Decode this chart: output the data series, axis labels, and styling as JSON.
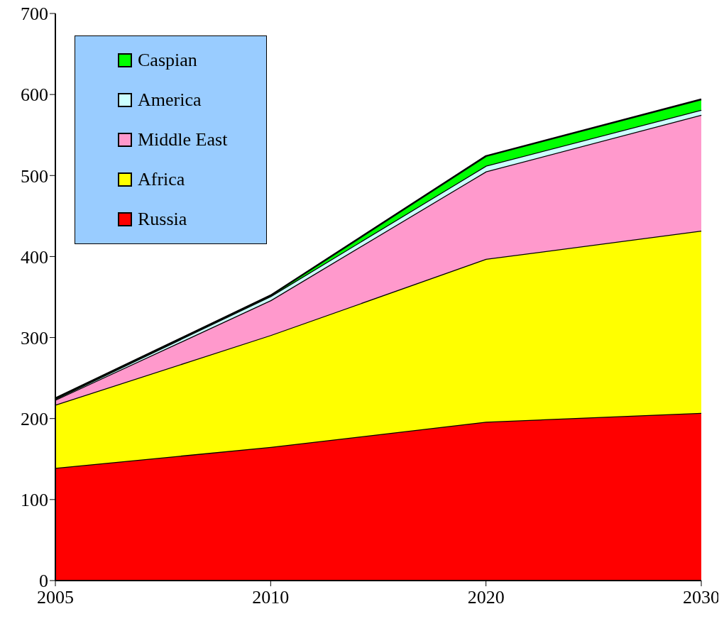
{
  "chart_data": {
    "type": "area",
    "stacked": true,
    "categories": [
      "2005",
      "2010",
      "2020",
      "2030"
    ],
    "series": [
      {
        "name": "Russia",
        "color": "#ff0000",
        "values": [
          139,
          165,
          196,
          207
        ]
      },
      {
        "name": "Africa",
        "color": "#ffff00",
        "values": [
          78,
          138,
          201,
          225
        ]
      },
      {
        "name": "Middle East",
        "color": "#ff99cc",
        "values": [
          6,
          43,
          108,
          143
        ]
      },
      {
        "name": "America",
        "color": "#ccffff",
        "values": [
          1,
          5,
          7,
          6
        ]
      },
      {
        "name": "Caspian",
        "color": "#00ff00",
        "values": [
          1,
          1,
          12,
          13
        ]
      }
    ],
    "ylim": [
      0,
      700
    ],
    "yticks": [
      0,
      100,
      200,
      300,
      400,
      500,
      600,
      700
    ],
    "grid": false,
    "legend": "top left"
  }
}
